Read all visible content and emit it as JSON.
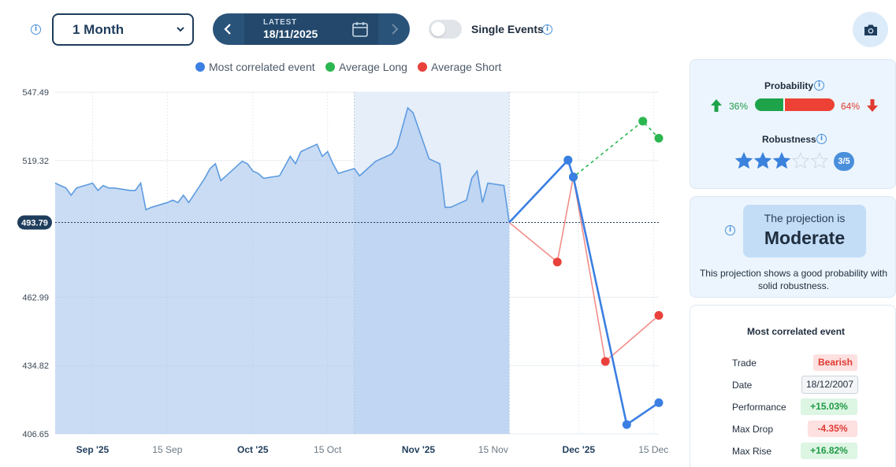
{
  "toolbar": {
    "period_select": {
      "value": "1 Month"
    },
    "date_nav": {
      "label": "LATEST",
      "date": "18/11/2025"
    },
    "single_events": {
      "label": "Single Events",
      "on": false
    }
  },
  "legend": [
    {
      "label": "Most correlated event",
      "color": "#3b7fe3"
    },
    {
      "label": "Average Long",
      "color": "#2bb650"
    },
    {
      "label": "Average Short",
      "color": "#e9413b"
    }
  ],
  "chart_data": {
    "type": "area",
    "y_ticks": [
      "547.49",
      "519.32",
      "462.99",
      "434.82",
      "406.65"
    ],
    "ylim": [
      406.65,
      547.49
    ],
    "current_value_label": "493.79",
    "current_value": 493.79,
    "x_labels": [
      {
        "label": "Sep '25",
        "bold": true
      },
      {
        "label": "15 Sep",
        "bold": false
      },
      {
        "label": "Oct '25",
        "bold": true
      },
      {
        "label": "15 Oct",
        "bold": false
      },
      {
        "label": "Nov '25",
        "bold": true
      },
      {
        "label": "15 Nov",
        "bold": false
      },
      {
        "label": "Dec '25",
        "bold": true
      },
      {
        "label": "15 Dec",
        "bold": false
      }
    ],
    "x_start": "2025-08-25",
    "x_end": "2025-12-16",
    "highlight_range": [
      "2025-10-20",
      "2025-11-18"
    ],
    "history": [
      [
        "2025-08-25",
        510
      ],
      [
        "2025-08-26",
        509
      ],
      [
        "2025-08-27",
        508
      ],
      [
        "2025-08-28",
        505
      ],
      [
        "2025-08-29",
        508
      ],
      [
        "2025-09-01",
        510
      ],
      [
        "2025-09-02",
        507
      ],
      [
        "2025-09-03",
        509
      ],
      [
        "2025-09-04",
        508
      ],
      [
        "2025-09-05",
        508
      ],
      [
        "2025-09-08",
        507
      ],
      [
        "2025-09-09",
        507
      ],
      [
        "2025-09-10",
        510
      ],
      [
        "2025-09-11",
        499
      ],
      [
        "2025-09-12",
        500
      ],
      [
        "2025-09-15",
        502
      ],
      [
        "2025-09-16",
        503
      ],
      [
        "2025-09-17",
        502
      ],
      [
        "2025-09-18",
        505
      ],
      [
        "2025-09-19",
        502
      ],
      [
        "2025-09-22",
        512
      ],
      [
        "2025-09-23",
        516
      ],
      [
        "2025-09-24",
        518
      ],
      [
        "2025-09-25",
        511
      ],
      [
        "2025-09-26",
        513
      ],
      [
        "2025-09-29",
        519
      ],
      [
        "2025-09-30",
        518
      ],
      [
        "2025-10-01",
        515
      ],
      [
        "2025-10-02",
        514
      ],
      [
        "2025-10-03",
        512
      ],
      [
        "2025-10-06",
        513
      ],
      [
        "2025-10-07",
        517
      ],
      [
        "2025-10-08",
        521
      ],
      [
        "2025-10-09",
        518
      ],
      [
        "2025-10-10",
        523
      ],
      [
        "2025-10-13",
        526
      ],
      [
        "2025-10-14",
        521
      ],
      [
        "2025-10-15",
        523
      ],
      [
        "2025-10-16",
        518
      ],
      [
        "2025-10-17",
        514
      ],
      [
        "2025-10-20",
        516
      ],
      [
        "2025-10-21",
        513
      ],
      [
        "2025-10-22",
        515
      ],
      [
        "2025-10-23",
        517
      ],
      [
        "2025-10-24",
        519
      ],
      [
        "2025-10-27",
        522
      ],
      [
        "2025-10-28",
        525
      ],
      [
        "2025-10-29",
        533
      ],
      [
        "2025-10-30",
        541
      ],
      [
        "2025-10-31",
        539
      ],
      [
        "2025-11-03",
        520
      ],
      [
        "2025-11-04",
        519
      ],
      [
        "2025-11-05",
        518
      ],
      [
        "2025-11-06",
        500
      ],
      [
        "2025-11-07",
        500
      ],
      [
        "2025-11-10",
        503
      ],
      [
        "2025-11-11",
        512
      ],
      [
        "2025-11-12",
        515
      ],
      [
        "2025-11-13",
        502
      ],
      [
        "2025-11-14",
        510
      ],
      [
        "2025-11-17",
        509
      ],
      [
        "2025-11-18",
        493.79
      ]
    ],
    "series": [
      {
        "name": "Most correlated event",
        "color": "#3b7fe3",
        "dashed": false,
        "points": [
          [
            "2025-11-18",
            493.79
          ],
          [
            "2025-11-29",
            519.5
          ],
          [
            "2025-11-30",
            512.5
          ],
          [
            "2025-12-10",
            410.5
          ],
          [
            "2025-12-16",
            419.5
          ]
        ]
      },
      {
        "name": "Average Long",
        "color": "#2bb650",
        "dashed": true,
        "points": [
          [
            "2025-11-18",
            493.79
          ],
          [
            "2025-11-29",
            519.5
          ],
          [
            "2025-11-30",
            512.5
          ],
          [
            "2025-12-13",
            535.5
          ],
          [
            "2025-12-16",
            528.5
          ]
        ]
      },
      {
        "name": "Average Short",
        "color": "#e9413b",
        "dashed": false,
        "points": [
          [
            "2025-11-18",
            493.79
          ],
          [
            "2025-11-27",
            477.5
          ],
          [
            "2025-11-30",
            512.5
          ],
          [
            "2025-12-06",
            436.5
          ],
          [
            "2025-12-16",
            455.5
          ]
        ]
      }
    ],
    "grid": true
  },
  "probability": {
    "title": "Probability",
    "up_pct": "36%",
    "down_pct": "64%",
    "up_share": 0.36,
    "up_color": "#1ea34b",
    "down_color": "#ee4135"
  },
  "robustness": {
    "title": "Robustness",
    "score": 3,
    "max": 5,
    "label": "3/5"
  },
  "projection": {
    "line1": "The projection is",
    "level": "Moderate",
    "description": "This projection shows a good probability with solid robustness."
  },
  "correlated_event": {
    "title": "Most correlated event",
    "rows": [
      {
        "label": "Trade",
        "value": "Bearish",
        "style": "bear"
      },
      {
        "label": "Date",
        "value": "18/12/2007",
        "style": "plain"
      },
      {
        "label": "Performance",
        "value": "+15.03%",
        "style": "green"
      },
      {
        "label": "Max Drop",
        "value": "-4.35%",
        "style": "red"
      },
      {
        "label": "Max Rise",
        "value": "+16.82%",
        "style": "green"
      }
    ]
  }
}
